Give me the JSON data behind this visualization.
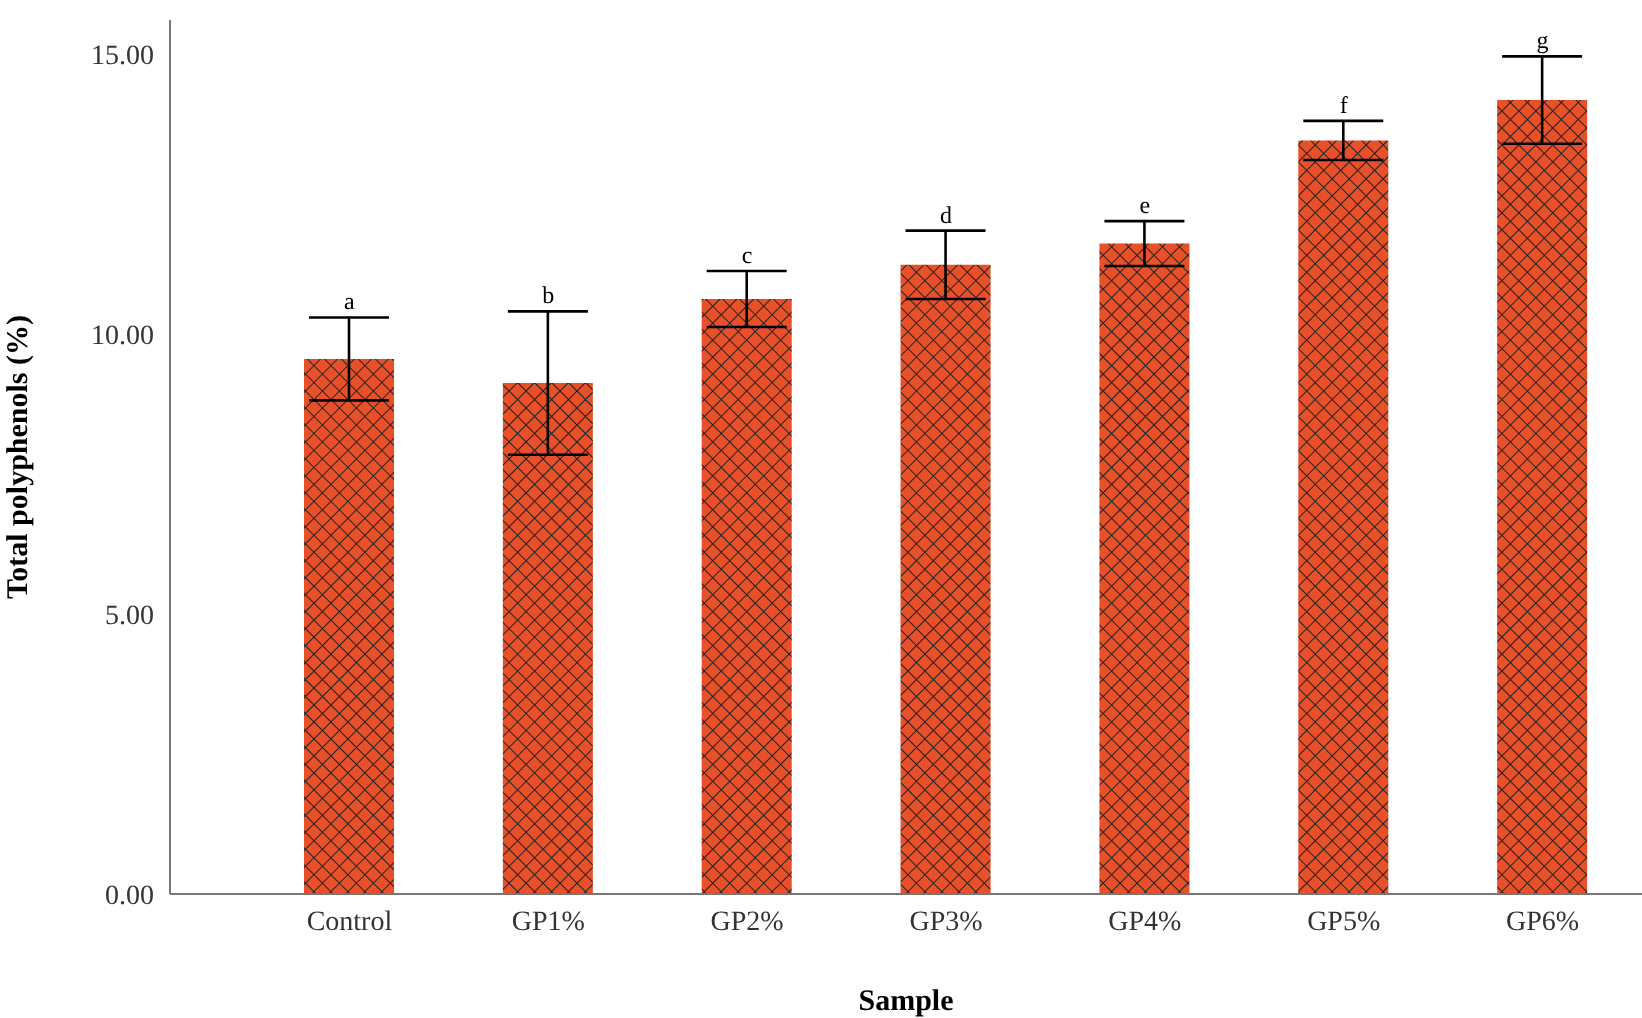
{
  "chart_data": {
    "type": "bar",
    "xlabel": "Sample",
    "ylabel": "Total polyphenols (%)",
    "categories": [
      "Control",
      "GP1%",
      "GP2%",
      "GP3%",
      "GP4%",
      "GP5%",
      "GP6%"
    ],
    "values": [
      9.55,
      9.12,
      10.62,
      11.23,
      11.61,
      13.45,
      14.17
    ],
    "errors": [
      0.74,
      1.28,
      0.5,
      0.61,
      0.4,
      0.35,
      0.78
    ],
    "color": "#e8502a",
    "ylim": [
      0,
      15.6
    ],
    "yticks": [
      {
        "value": 0,
        "label": "0.00"
      },
      {
        "value": 5,
        "label": "5.00"
      },
      {
        "value": 10,
        "label": "10.00"
      },
      {
        "value": 15,
        "label": "15.00"
      }
    ],
    "annotations": [
      {
        "text": "a",
        "x": "Control",
        "y": 10.29
      },
      {
        "text": "b",
        "x": "GP1%",
        "y": 10.4
      },
      {
        "text": "c",
        "x": "GP2%",
        "y": 11.12
      },
      {
        "text": "d",
        "x": "GP3%",
        "y": 11.84
      },
      {
        "text": "e",
        "x": "GP4%",
        "y": 12.01
      },
      {
        "text": "f",
        "x": "GP5%",
        "y": 13.8
      },
      {
        "text": "g",
        "x": "GP6%",
        "y": 14.95
      }
    ],
    "grid": false
  }
}
